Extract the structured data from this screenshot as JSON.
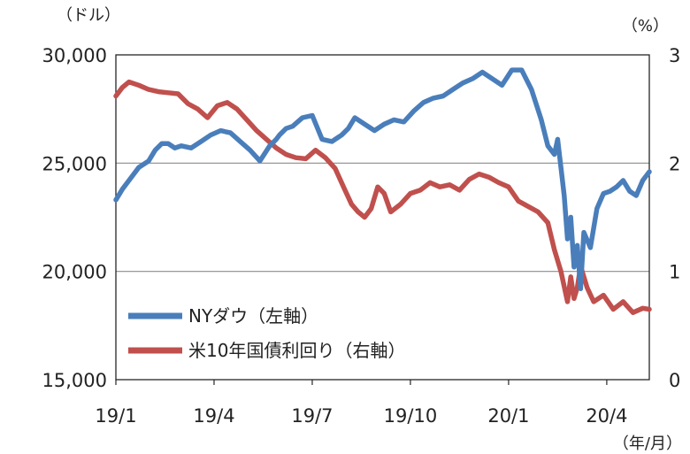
{
  "chart_data": {
    "type": "line",
    "title": "",
    "left_axis": {
      "unit_label": "（ドル）",
      "ylim": [
        15000,
        30000
      ],
      "ticks": [
        "30,000",
        "25,000",
        "20,000",
        "15,000"
      ],
      "tick_values": [
        30000,
        25000,
        20000,
        15000
      ]
    },
    "right_axis": {
      "unit_label": "（%）",
      "ylim": [
        0,
        3
      ],
      "ticks": [
        "3",
        "2",
        "1",
        "0"
      ],
      "tick_values": [
        3,
        2,
        1,
        0
      ]
    },
    "x_axis": {
      "unit_label": "（年/月）",
      "ticks": [
        "19/1",
        "19/4",
        "19/7",
        "19/10",
        "20/1",
        "20/4"
      ],
      "tick_months": [
        0,
        3,
        6,
        9,
        12,
        15
      ],
      "xlim_months": [
        0,
        16.3
      ]
    },
    "grid": "horizontal",
    "legend_position": "bottom-left",
    "series": [
      {
        "name": "NYダウ（左軸）",
        "axis": "left",
        "color": "#4a7ebb",
        "x_months": [
          0,
          0.2,
          0.45,
          0.7,
          1,
          1.2,
          1.4,
          1.6,
          1.8,
          2,
          2.3,
          2.6,
          2.9,
          3.2,
          3.5,
          3.8,
          4.1,
          4.4,
          4.7,
          4.9,
          5,
          5.2,
          5.4,
          5.7,
          6,
          6.3,
          6.6,
          6.9,
          7.1,
          7.3,
          7.6,
          7.9,
          8.2,
          8.5,
          8.8,
          9.1,
          9.4,
          9.7,
          10,
          10.3,
          10.6,
          10.9,
          11.2,
          11.5,
          11.8,
          12.1,
          12.4,
          12.7,
          13,
          13.2,
          13.4,
          13.5,
          13.6,
          13.7,
          13.8,
          13.9,
          14,
          14.1,
          14.2,
          14.3,
          14.5,
          14.7,
          14.9,
          15.1,
          15.3,
          15.5,
          15.7,
          15.9,
          16.1,
          16.3
        ],
        "values": [
          23300,
          23800,
          24300,
          24800,
          25100,
          25600,
          25900,
          25900,
          25700,
          25800,
          25700,
          26000,
          26300,
          26500,
          26400,
          26000,
          25600,
          25100,
          25800,
          26100,
          26300,
          26600,
          26700,
          27100,
          27200,
          26100,
          26000,
          26300,
          26600,
          27100,
          26800,
          26500,
          26800,
          27000,
          26900,
          27400,
          27800,
          28000,
          28100,
          28400,
          28700,
          28900,
          29200,
          28900,
          28600,
          29300,
          29300,
          28400,
          27000,
          25800,
          25400,
          26100,
          24800,
          23500,
          21500,
          22500,
          20200,
          21200,
          19200,
          21800,
          21100,
          22900,
          23600,
          23700,
          23900,
          24200,
          23700,
          23500,
          24200,
          24600
        ]
      },
      {
        "name": "米10年国債利回り（右軸）",
        "axis": "right",
        "color": "#c0504d",
        "x_months": [
          0,
          0.2,
          0.4,
          0.7,
          1,
          1.3,
          1.6,
          1.9,
          2.2,
          2.5,
          2.8,
          3.1,
          3.4,
          3.7,
          4,
          4.3,
          4.6,
          4.9,
          5.2,
          5.5,
          5.8,
          6.1,
          6.4,
          6.7,
          7,
          7.2,
          7.4,
          7.6,
          7.8,
          8,
          8.2,
          8.4,
          8.7,
          9,
          9.3,
          9.6,
          9.9,
          10.2,
          10.5,
          10.8,
          11.1,
          11.4,
          11.7,
          12,
          12.3,
          12.6,
          12.9,
          13.2,
          13.4,
          13.6,
          13.8,
          13.9,
          14,
          14.1,
          14.2,
          14.4,
          14.6,
          14.9,
          15.2,
          15.5,
          15.8,
          16.1,
          16.3
        ],
        "values": [
          2.62,
          2.7,
          2.75,
          2.72,
          2.68,
          2.66,
          2.65,
          2.64,
          2.55,
          2.5,
          2.42,
          2.53,
          2.56,
          2.5,
          2.4,
          2.3,
          2.22,
          2.14,
          2.08,
          2.05,
          2.04,
          2.12,
          2.05,
          1.95,
          1.75,
          1.62,
          1.55,
          1.5,
          1.58,
          1.78,
          1.72,
          1.55,
          1.62,
          1.72,
          1.75,
          1.82,
          1.78,
          1.8,
          1.75,
          1.85,
          1.9,
          1.87,
          1.82,
          1.78,
          1.65,
          1.6,
          1.55,
          1.45,
          1.2,
          1.0,
          0.72,
          0.95,
          0.75,
          0.85,
          1.05,
          0.85,
          0.72,
          0.78,
          0.65,
          0.72,
          0.62,
          0.66,
          0.65
        ]
      }
    ]
  }
}
